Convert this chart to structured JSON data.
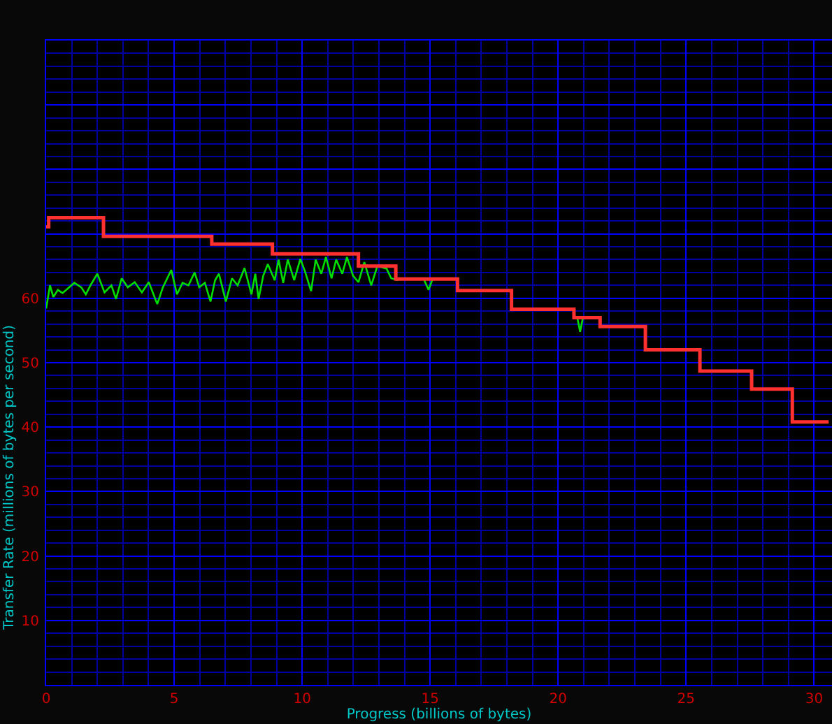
{
  "chart_data": {
    "type": "line",
    "xlabel": "Progress (billions of bytes)",
    "ylabel": "Transfer Rate (millions of bytes per second)",
    "xlim": [
      0,
      30.7
    ],
    "ylim": [
      0,
      100
    ],
    "xticks": [
      0,
      {
        "value": 1,
        "label": null
      },
      {
        "value": 2,
        "label": null
      },
      {
        "value": 3,
        "label": null
      },
      {
        "value": 4,
        "label": null
      },
      5,
      {
        "value": 6,
        "label": null
      },
      {
        "value": 7,
        "label": null
      },
      {
        "value": 8,
        "label": null
      },
      {
        "value": 9,
        "label": null
      },
      10,
      {
        "value": 11,
        "label": null
      },
      {
        "value": 12,
        "label": null
      },
      {
        "value": 13,
        "label": null
      },
      {
        "value": 14,
        "label": null
      },
      15,
      {
        "value": 16,
        "label": null
      },
      {
        "value": 17,
        "label": null
      },
      {
        "value": 18,
        "label": null
      },
      {
        "value": 19,
        "label": null
      },
      20,
      {
        "value": 21,
        "label": null
      },
      {
        "value": 22,
        "label": null
      },
      {
        "value": 23,
        "label": null
      },
      {
        "value": 24,
        "label": null
      },
      25,
      {
        "value": 26,
        "label": null
      },
      {
        "value": 27,
        "label": null
      },
      {
        "value": 28,
        "label": null
      },
      {
        "value": 29,
        "label": null
      },
      30
    ],
    "yticks": [
      {
        "value": 2,
        "label": null
      },
      {
        "value": 4,
        "label": null
      },
      {
        "value": 6,
        "label": null
      },
      {
        "value": 8,
        "label": null
      },
      10,
      {
        "value": 12,
        "label": null
      },
      {
        "value": 14,
        "label": null
      },
      {
        "value": 16,
        "label": null
      },
      {
        "value": 18,
        "label": null
      },
      20,
      {
        "value": 22,
        "label": null
      },
      {
        "value": 24,
        "label": null
      },
      {
        "value": 26,
        "label": null
      },
      {
        "value": 28,
        "label": null
      },
      30,
      {
        "value": 32,
        "label": null
      },
      {
        "value": 34,
        "label": null
      },
      {
        "value": 36,
        "label": null
      },
      {
        "value": 38,
        "label": null
      },
      40,
      {
        "value": 42,
        "label": null
      },
      {
        "value": 44,
        "label": null
      },
      {
        "value": 46,
        "label": null
      },
      {
        "value": 48,
        "label": null
      },
      50,
      {
        "value": 52,
        "label": null
      },
      {
        "value": 54,
        "label": null
      },
      {
        "value": 56,
        "label": null
      },
      {
        "value": 58,
        "label": null
      },
      60,
      {
        "value": 62,
        "label": null
      },
      {
        "value": 64,
        "label": null
      },
      {
        "value": 66,
        "label": null
      },
      {
        "value": 68,
        "label": null
      },
      {
        "value": 70,
        "label": null
      },
      {
        "value": 72,
        "label": null
      },
      {
        "value": 74,
        "label": null
      },
      {
        "value": 76,
        "label": null
      },
      {
        "value": 78,
        "label": null
      },
      {
        "value": 80,
        "label": null
      },
      {
        "value": 82,
        "label": null
      },
      {
        "value": 84,
        "label": null
      },
      {
        "value": 86,
        "label": null
      },
      {
        "value": 88,
        "label": null
      },
      {
        "value": 90,
        "label": null
      },
      {
        "value": 92,
        "label": null
      },
      {
        "value": 94,
        "label": null
      },
      {
        "value": 96,
        "label": null
      },
      {
        "value": 98,
        "label": null
      }
    ],
    "grid": true,
    "series": [
      {
        "color": "#00dd00",
        "x": [
          0,
          0.15,
          0.28,
          0.46,
          0.64,
          1.1,
          1.37,
          1.55,
          1.73,
          2.0,
          2.28,
          2.55,
          2.73,
          2.95,
          3.19,
          3.46,
          3.74,
          4.01,
          4.34,
          4.56,
          4.89,
          5.11,
          5.33,
          5.56,
          5.8,
          5.98,
          6.2,
          6.42,
          6.6,
          6.75,
          7.02,
          7.26,
          7.48,
          7.75,
          8.02,
          8.17,
          8.3,
          8.48,
          8.66,
          8.93,
          9.08,
          9.26,
          9.44,
          9.69,
          9.93,
          10.11,
          10.35,
          10.53,
          10.75,
          10.93,
          11.15,
          11.33,
          11.57,
          11.75,
          11.99,
          12.2,
          12.43,
          12.7,
          12.94,
          13.3,
          13.48,
          13.76,
          14.3,
          14.75,
          14.94,
          15.1,
          18.0,
          20.75,
          20.86,
          20.97
        ],
        "values": [
          58.4,
          62.0,
          60.2,
          61.3,
          60.8,
          62.4,
          61.7,
          60.6,
          62.0,
          63.8,
          60.9,
          62.0,
          59.9,
          63.1,
          61.7,
          62.5,
          60.9,
          62.5,
          59.1,
          61.7,
          64.4,
          60.6,
          62.4,
          62.0,
          64.0,
          61.7,
          62.4,
          59.5,
          62.8,
          63.8,
          59.5,
          63.1,
          62.0,
          64.7,
          60.6,
          63.8,
          59.9,
          63.5,
          65.3,
          62.8,
          66.0,
          62.4,
          66.0,
          62.8,
          66.1,
          64.2,
          61.1,
          66.0,
          63.8,
          66.4,
          63.1,
          66.0,
          63.8,
          66.4,
          63.5,
          62.5,
          65.6,
          62.0,
          65.0,
          64.6,
          63.1,
          62.8,
          null,
          63.0,
          61.3,
          63.0,
          null,
          57.0,
          54.8,
          57.0
        ]
      },
      {
        "type": "step",
        "color": "#ff3030",
        "x": [
          0,
          0.1,
          2.24,
          6.47,
          8.84,
          12.2,
          13.66,
          16.07,
          18.18,
          20.62,
          21.64,
          23.41,
          25.54,
          27.56,
          29.15,
          30.57
        ],
        "values": [
          71.1,
          72.5,
          69.6,
          68.4,
          66.9,
          65.0,
          63.0,
          61.2,
          58.3,
          57.0,
          55.6,
          52.0,
          48.7,
          45.9,
          40.8,
          40.8
        ]
      }
    ]
  }
}
